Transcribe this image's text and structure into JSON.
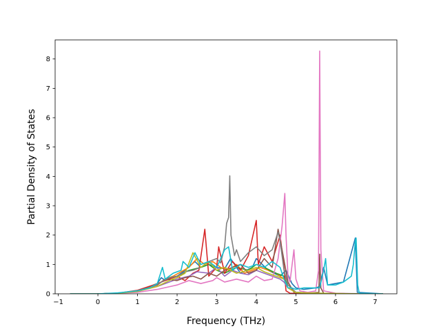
{
  "chart_data": {
    "type": "line",
    "xlabel": "Frequency (THz)",
    "ylabel": "Partial Density of States",
    "xlim": [
      -1.08,
      7.55
    ],
    "ylim": [
      0,
      8.65
    ],
    "xticks": [
      -1,
      0,
      1,
      2,
      3,
      4,
      5,
      6,
      7
    ],
    "xtick_labels": [
      "−1",
      "0",
      "1",
      "2",
      "3",
      "4",
      "5",
      "6",
      "7"
    ],
    "yticks": [
      0,
      1,
      2,
      3,
      4,
      5,
      6,
      7,
      8
    ],
    "ytick_labels": [
      "0",
      "1",
      "2",
      "3",
      "4",
      "5",
      "6",
      "7",
      "8"
    ],
    "grid": false,
    "legend": "none",
    "series": [
      {
        "color": "#1f77b4",
        "x": [
          -0.7,
          0.0,
          0.5,
          1.0,
          1.5,
          1.6,
          1.7,
          2.0,
          2.2,
          2.45,
          2.6,
          2.8,
          3.0,
          3.2,
          3.35,
          3.6,
          3.9,
          4.0,
          4.3,
          4.6,
          4.75,
          4.9,
          5.0,
          5.2,
          5.5,
          5.6,
          5.7,
          5.8,
          6.2,
          6.5,
          6.55,
          7.2
        ],
        "y": [
          0,
          0,
          0.02,
          0.08,
          0.35,
          0.55,
          0.45,
          0.6,
          0.8,
          1.1,
          0.9,
          1.0,
          0.9,
          0.85,
          1.2,
          0.7,
          0.9,
          1.2,
          0.8,
          0.6,
          0.8,
          0.35,
          0.2,
          0.15,
          0.2,
          0.25,
          0.9,
          0.3,
          0.4,
          1.9,
          0.05,
          0
        ]
      },
      {
        "color": "#ff7f0e",
        "x": [
          -0.7,
          0.0,
          0.5,
          1.0,
          1.5,
          1.7,
          1.9,
          2.1,
          2.3,
          2.5,
          2.7,
          2.9,
          3.1,
          3.3,
          3.5,
          3.7,
          3.9,
          4.1,
          4.3,
          4.5,
          4.7,
          4.8,
          5.0,
          5.5,
          5.8,
          6.5,
          7.2
        ],
        "y": [
          0,
          0,
          0.02,
          0.1,
          0.3,
          0.5,
          0.6,
          0.75,
          0.9,
          1.2,
          1.0,
          1.1,
          0.9,
          0.8,
          1.0,
          0.7,
          0.8,
          0.9,
          0.8,
          0.7,
          0.5,
          0.2,
          0.05,
          0.02,
          0.01,
          0.0,
          0
        ]
      },
      {
        "color": "#2ca02c",
        "x": [
          -0.7,
          0.0,
          0.5,
          1.0,
          1.4,
          1.6,
          1.8,
          2.0,
          2.3,
          2.6,
          2.8,
          3.0,
          3.2,
          3.5,
          3.8,
          4.0,
          4.2,
          4.5,
          4.7,
          4.8,
          5.0,
          5.6,
          6.0,
          6.5,
          7.2
        ],
        "y": [
          0,
          0,
          0.02,
          0.1,
          0.25,
          0.4,
          0.55,
          0.6,
          0.8,
          0.9,
          1.0,
          0.8,
          0.7,
          0.9,
          0.8,
          1.0,
          0.9,
          0.7,
          0.6,
          0.2,
          0.05,
          0.02,
          0.01,
          0.0,
          0
        ]
      },
      {
        "color": "#d62728",
        "x": [
          -0.7,
          0.0,
          0.5,
          1.0,
          1.4,
          1.6,
          1.8,
          2.0,
          2.2,
          2.4,
          2.55,
          2.7,
          2.8,
          3.0,
          3.05,
          3.2,
          3.4,
          3.6,
          3.8,
          4.0,
          4.05,
          4.2,
          4.4,
          4.6,
          4.7,
          4.75,
          4.85,
          5.0,
          5.5,
          6.0,
          7.2
        ],
        "y": [
          0,
          0,
          0.02,
          0.12,
          0.3,
          0.4,
          0.5,
          0.6,
          0.45,
          0.7,
          0.8,
          2.2,
          0.6,
          0.9,
          1.6,
          0.7,
          1.1,
          0.8,
          1.3,
          2.5,
          1.0,
          1.6,
          1.1,
          2.0,
          0.9,
          0.1,
          0.02,
          0.01,
          0.0,
          0.0,
          0
        ]
      },
      {
        "color": "#9467bd",
        "x": [
          -0.7,
          0.0,
          0.5,
          1.0,
          1.5,
          1.8,
          2.0,
          2.3,
          2.5,
          2.8,
          3.0,
          3.2,
          3.4,
          3.6,
          3.8,
          4.0,
          4.2,
          4.4,
          4.6,
          4.7,
          4.8,
          5.0,
          5.5,
          6.0,
          7.2
        ],
        "y": [
          0,
          0,
          0.02,
          0.08,
          0.25,
          0.4,
          0.5,
          0.6,
          0.75,
          0.7,
          0.9,
          0.6,
          0.8,
          0.7,
          0.65,
          0.8,
          0.7,
          0.6,
          0.5,
          0.4,
          0.2,
          0.05,
          0.02,
          0.01,
          0
        ]
      },
      {
        "color": "#8c564b",
        "x": [
          -0.7,
          0.0,
          0.5,
          1.0,
          1.5,
          1.7,
          2.0,
          2.2,
          2.4,
          2.6,
          2.8,
          3.0,
          3.2,
          3.4,
          3.6,
          3.8,
          4.0,
          4.2,
          4.4,
          4.55,
          4.65,
          4.8,
          4.95,
          5.3,
          5.58,
          5.6,
          5.63,
          5.7,
          6.0,
          6.5,
          7.2
        ],
        "y": [
          0,
          0,
          0.02,
          0.1,
          0.3,
          0.5,
          0.45,
          0.55,
          0.6,
          0.5,
          0.7,
          0.6,
          0.8,
          0.9,
          1.0,
          0.7,
          0.8,
          1.2,
          0.9,
          2.2,
          1.5,
          0.4,
          0.05,
          0.02,
          0.05,
          1.35,
          0.2,
          0.02,
          0.01,
          0.0,
          0
        ]
      },
      {
        "color": "#e377c2",
        "x": [
          -0.7,
          0.0,
          0.5,
          1.0,
          1.5,
          2.0,
          2.3,
          2.6,
          2.9,
          3.0,
          3.2,
          3.5,
          3.8,
          4.0,
          4.2,
          4.4,
          4.55,
          4.65,
          4.72,
          4.75,
          4.8,
          4.85,
          4.95,
          5.0,
          5.1,
          5.3,
          5.5,
          5.57,
          5.6,
          5.63,
          5.7,
          6.0,
          6.5,
          7.2
        ],
        "y": [
          0,
          0,
          0.02,
          0.05,
          0.15,
          0.3,
          0.45,
          0.35,
          0.45,
          0.55,
          0.4,
          0.5,
          0.4,
          0.6,
          0.45,
          0.5,
          1.2,
          2.3,
          3.42,
          2.0,
          0.6,
          0.4,
          1.5,
          0.5,
          0.1,
          0.05,
          0.1,
          0.8,
          8.27,
          1.5,
          0.1,
          0.02,
          0.0,
          0
        ]
      },
      {
        "color": "#7f7f7f",
        "x": [
          -0.7,
          0.0,
          0.5,
          1.0,
          1.4,
          1.6,
          1.8,
          2.0,
          2.2,
          2.4,
          2.6,
          2.8,
          3.0,
          3.1,
          3.2,
          3.25,
          3.3,
          3.33,
          3.36,
          3.45,
          3.5,
          3.6,
          3.8,
          4.0,
          4.2,
          4.4,
          4.55,
          4.6,
          4.7,
          4.8,
          5.0,
          5.5,
          7.2
        ],
        "y": [
          0,
          0,
          0.02,
          0.1,
          0.25,
          0.4,
          0.55,
          0.6,
          0.75,
          0.8,
          0.9,
          1.1,
          1.2,
          1.05,
          1.6,
          2.4,
          2.6,
          4.02,
          2.0,
          1.3,
          1.5,
          1.1,
          1.4,
          1.6,
          1.3,
          1.5,
          2.1,
          1.8,
          0.8,
          0.3,
          0.05,
          0.01,
          0
        ]
      },
      {
        "color": "#bcbd22",
        "x": [
          -0.7,
          0.0,
          0.5,
          1.0,
          1.5,
          1.8,
          2.0,
          2.2,
          2.4,
          2.6,
          2.8,
          3.0,
          3.2,
          3.5,
          3.8,
          4.0,
          4.2,
          4.5,
          4.7,
          4.8,
          5.0,
          5.6,
          6.0,
          6.5,
          7.2
        ],
        "y": [
          0,
          0,
          0.02,
          0.08,
          0.25,
          0.45,
          0.55,
          0.7,
          1.4,
          0.9,
          1.1,
          0.8,
          0.9,
          0.7,
          0.8,
          0.9,
          0.75,
          0.6,
          0.5,
          0.2,
          0.04,
          0.02,
          0.01,
          0.0,
          0
        ]
      },
      {
        "color": "#17becf",
        "x": [
          -0.7,
          0.0,
          0.5,
          1.0,
          1.3,
          1.5,
          1.63,
          1.7,
          1.9,
          2.1,
          2.15,
          2.3,
          2.45,
          2.6,
          2.8,
          3.0,
          3.2,
          3.3,
          3.4,
          3.6,
          3.8,
          4.0,
          4.2,
          4.4,
          4.6,
          4.7,
          4.8,
          4.9,
          5.0,
          5.2,
          5.4,
          5.6,
          5.7,
          5.75,
          5.8,
          6.0,
          6.2,
          6.4,
          6.45,
          6.5,
          6.52,
          6.56,
          6.6,
          7.2
        ],
        "y": [
          0,
          0,
          0.03,
          0.1,
          0.2,
          0.35,
          0.9,
          0.5,
          0.7,
          0.8,
          1.1,
          0.9,
          1.4,
          1.0,
          1.1,
          0.9,
          1.5,
          1.6,
          0.8,
          1.0,
          0.9,
          1.0,
          0.9,
          1.1,
          0.9,
          0.5,
          0.2,
          0.2,
          0.15,
          0.2,
          0.2,
          0.2,
          0.8,
          1.2,
          0.3,
          0.3,
          0.4,
          0.6,
          1.0,
          1.8,
          1.9,
          0.3,
          0.02,
          0
        ]
      }
    ]
  }
}
